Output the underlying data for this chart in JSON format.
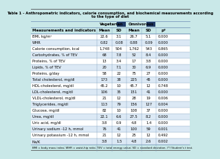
{
  "title": "Table 1 - Anthropometric indicators, calorie consumption, and biochemical measurements according\nto the type of diet",
  "col0_header": "Measurements and indicators",
  "group_headers": [
    "Vegetarian",
    "Omnivorous"
  ],
  "sub_headers": [
    "Mean",
    "SD",
    "Mean",
    "SD",
    "p*"
  ],
  "rows": [
    [
      "BMI, kg/m²",
      "22.6",
      "3.1",
      "26.7",
      "5.1",
      "0.000"
    ],
    [
      "WHR",
      "0.82",
      "0.08",
      "0.88",
      "0.09",
      "0.000"
    ],
    [
      "Calorie consumption, kcal",
      "1,748",
      "504",
      "1,762",
      "543",
      "0.865"
    ],
    [
      "Carbohydrates, % of TEV",
      "68",
      "7.8",
      "52",
      "8.4",
      "0.000"
    ],
    [
      "Proteins, % of TEV",
      "13",
      "3.4",
      "17",
      "3.8",
      "0.000"
    ],
    [
      "Lipids, % of TEV",
      "20",
      "7.1",
      "30",
      "6.9",
      "0.000"
    ],
    [
      "Proteins, g/day",
      "58",
      "22",
      "75",
      "27",
      "0.000"
    ],
    [
      "Total cholesterol, mg/dl",
      "173",
      "38",
      "225",
      "45",
      "0.000"
    ],
    [
      "HDL-cholesterol, mg/dl",
      "45.2",
      "10",
      "45.7",
      "12",
      "0.748"
    ],
    [
      "LDL-cholesterol, mg/dl",
      "106",
      "35",
      "151",
      "41",
      "0.000"
    ],
    [
      "VLDL-cholesterol, mg/dl",
      "21",
      "12",
      "28",
      "19",
      "0.006"
    ],
    [
      "Triglycerides, mg/dl",
      "113",
      "79",
      "156",
      "127",
      "0.004"
    ],
    [
      "Glucose, mg/dl",
      "82",
      "10",
      "108",
      "37",
      "0.000"
    ],
    [
      "Urea, mg/dl",
      "22.1",
      "6.6",
      "27.5",
      "8.2",
      "0.000"
    ],
    [
      "Uric acid, mg/dl",
      "3.8",
      "0.9",
      "4.8",
      "1.4",
      "0.000"
    ],
    [
      "Urinary sodium -12 h, mmol",
      "76",
      "41",
      "100",
      "59",
      "0.001"
    ],
    [
      "Urinary potassium -12 h, mmol",
      "21",
      "12",
      "25",
      "12",
      "0.492"
    ],
    [
      "Na/K",
      "3.8",
      "1.5",
      "4.8",
      "2.6",
      "0.002"
    ]
  ],
  "footnote": "BMI = body mass index; WHR = waist-hip ratio; TEV = total energy value; SD = standard deviation. (*) Student's t test.",
  "bg_color": "#c9e8e8",
  "title_bg": "#c9e8e8",
  "header_bg": "#c9e8e8",
  "white_row_bg": "#ffffff",
  "alt_row_bg": "#dce9f5",
  "footnote_bg": "#c9e8e8",
  "dark_box_color": "#1f3864",
  "border_color": "#7f9fbf",
  "text_color": "#000000"
}
